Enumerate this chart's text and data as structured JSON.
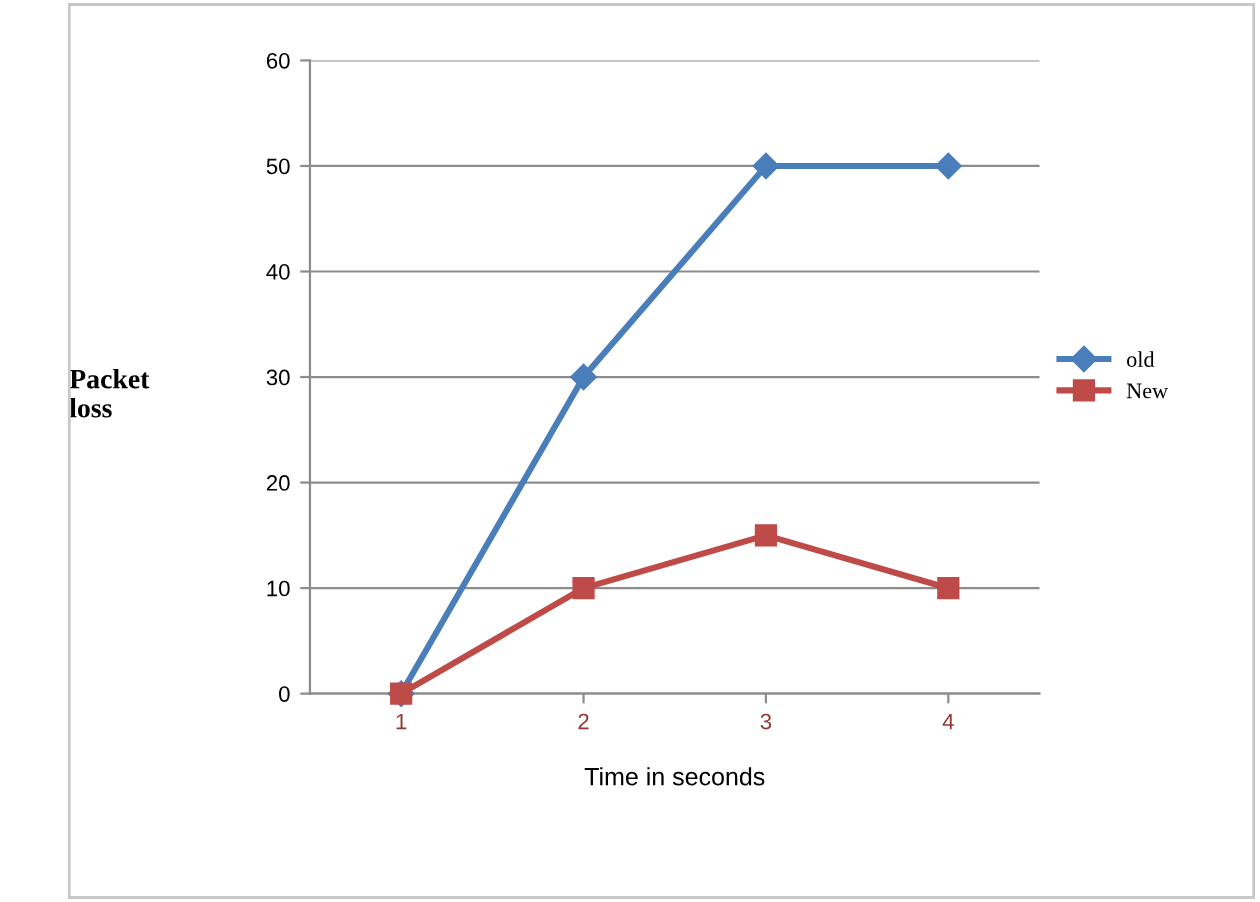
{
  "chart_data": {
    "type": "line",
    "xlabel": "Time in seconds",
    "ylabel": "Packet\nloss",
    "categories": [
      "1",
      "2",
      "3",
      "4"
    ],
    "series": [
      {
        "name": "old",
        "color": "#4a7ebb",
        "values": [
          0,
          30,
          50,
          50
        ],
        "marker": "diamond"
      },
      {
        "name": "New",
        "color": "#be4b48",
        "values": [
          0,
          10,
          15,
          10
        ],
        "marker": "square"
      }
    ],
    "ylim": [
      0,
      60
    ],
    "yticks": [
      0,
      10,
      20,
      30,
      40,
      50,
      60
    ],
    "grid": "y",
    "legend": "right",
    "line_style": "solid"
  }
}
